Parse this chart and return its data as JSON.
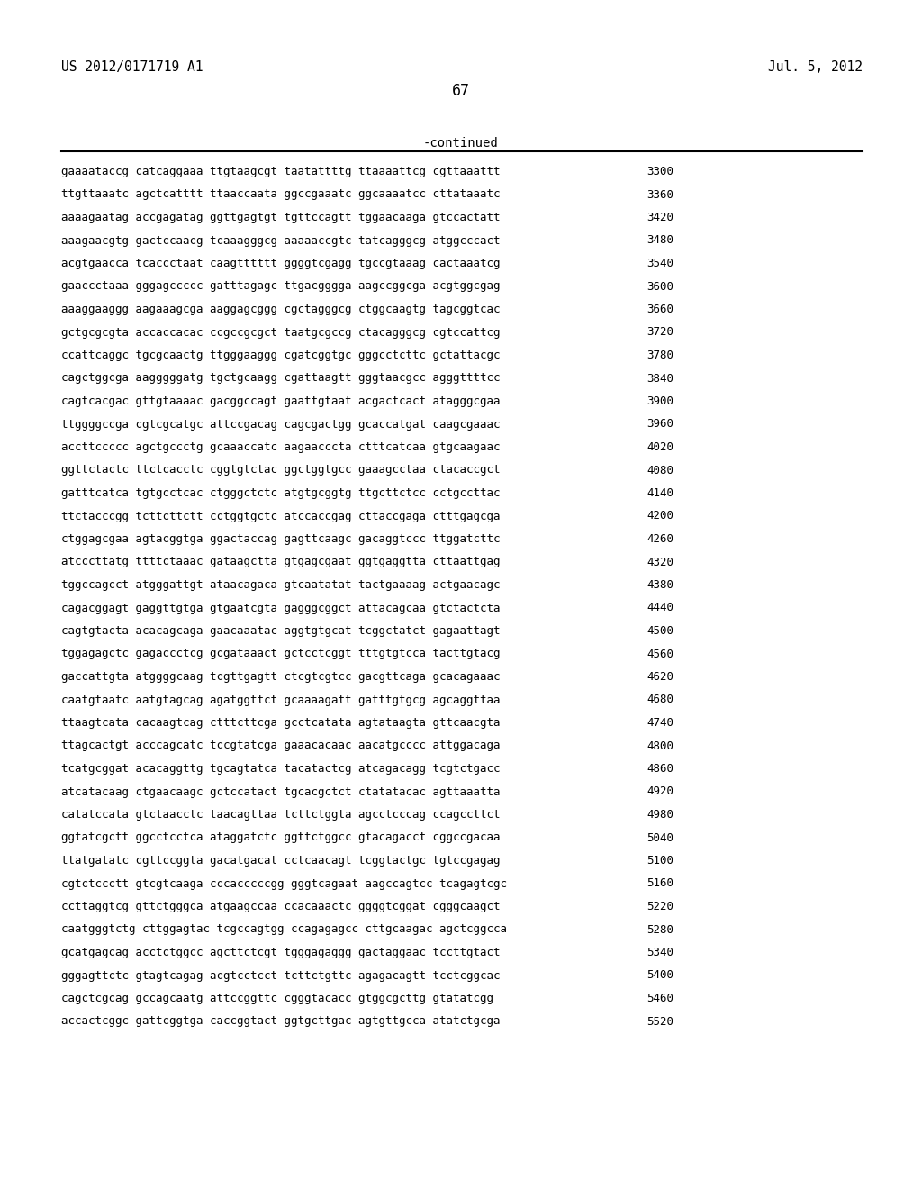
{
  "header_left": "US 2012/0171719 A1",
  "header_right": "Jul. 5, 2012",
  "page_number": "67",
  "continued_label": "-continued",
  "background_color": "#ffffff",
  "text_color": "#000000",
  "font_size": 9.0,
  "header_font_size": 10.5,
  "page_num_font_size": 12,
  "continued_font_size": 10,
  "sequences": [
    [
      "gaaaataccg catcaggaaa ttgtaagcgt taatattttg ttaaaattcg cgttaaattt",
      "3300"
    ],
    [
      "ttgttaaatc agctcatttt ttaaccaata ggccgaaatc ggcaaaatcc cttataaatc",
      "3360"
    ],
    [
      "aaaagaatag accgagatag ggttgagtgt tgttccagtt tggaacaaga gtccactatt",
      "3420"
    ],
    [
      "aaagaacgtg gactccaacg tcaaagggcg aaaaaccgtc tatcagggcg atggcccact",
      "3480"
    ],
    [
      "acgtgaacca tcaccctaat caagtttttt ggggtcgagg tgccgtaaag cactaaatcg",
      "3540"
    ],
    [
      "gaaccctaaa gggagccccc gatttagagc ttgacgggga aagccggcga acgtggcgag",
      "3600"
    ],
    [
      "aaaggaaggg aagaaagcga aaggagcggg cgctagggcg ctggcaagtg tagcggtcac",
      "3660"
    ],
    [
      "gctgcgcgta accaccacac ccgccgcgct taatgcgccg ctacagggcg cgtccattcg",
      "3720"
    ],
    [
      "ccattcaggc tgcgcaactg ttgggaaggg cgatcggtgc gggcctcttc gctattacgc",
      "3780"
    ],
    [
      "cagctggcga aagggggatg tgctgcaagg cgattaagtt gggtaacgcc agggttttcc",
      "3840"
    ],
    [
      "cagtcacgac gttgtaaaac gacggccagt gaattgtaat acgactcact atagggcgaa",
      "3900"
    ],
    [
      "ttggggccga cgtcgcatgc attccgacag cagcgactgg gcaccatgat caagcgaaac",
      "3960"
    ],
    [
      "accttccccc agctgccctg gcaaaccatc aagaacccta ctttcatcaa gtgcaagaac",
      "4020"
    ],
    [
      "ggttctactc ttctcacctc cggtgtctac ggctggtgcc gaaagcctaa ctacaccgct",
      "4080"
    ],
    [
      "gatttcatca tgtgcctcac ctgggctctc atgtgcggtg ttgcttctcc cctgccttac",
      "4140"
    ],
    [
      "ttctacccgg tcttcttctt cctggtgctc atccaccgag cttaccgaga ctttgagcga",
      "4200"
    ],
    [
      "ctggagcgaa agtacggtga ggactaccag gagttcaagc gacaggtccc ttggatcttc",
      "4260"
    ],
    [
      "atcccttatg ttttctaaac gataagctta gtgagcgaat ggtgaggtta cttaattgag",
      "4320"
    ],
    [
      "tggccagcct atgggattgt ataacagaca gtcaatatat tactgaaaag actgaacagc",
      "4380"
    ],
    [
      "cagacggagt gaggttgtga gtgaatcgta gagggcggct attacagcaa gtctactcta",
      "4440"
    ],
    [
      "cagtgtacta acacagcaga gaacaaatac aggtgtgcat tcggctatct gagaattagt",
      "4500"
    ],
    [
      "tggagagctc gagaccctcg gcgataaact gctcctcggt tttgtgtcca tacttgtacg",
      "4560"
    ],
    [
      "gaccattgta atggggcaag tcgttgagtt ctcgtcgtcc gacgttcaga gcacagaaac",
      "4620"
    ],
    [
      "caatgtaatc aatgtagcag agatggttct gcaaaagatt gatttgtgcg agcaggttaa",
      "4680"
    ],
    [
      "ttaagtcata cacaagtcag ctttcttcga gcctcatata agtataagta gttcaacgta",
      "4740"
    ],
    [
      "ttagcactgt acccagcatc tccgtatcga gaaacacaac aacatgcccc attggacaga",
      "4800"
    ],
    [
      "tcatgcggat acacaggttg tgcagtatca tacatactcg atcagacagg tcgtctgacc",
      "4860"
    ],
    [
      "atcatacaag ctgaacaagc gctccatact tgcacgctct ctatatacac agttaaatta",
      "4920"
    ],
    [
      "catatccata gtctaacctc taacagttaa tcttctggta agcctcccag ccagccttct",
      "4980"
    ],
    [
      "ggtatcgctt ggcctcctca ataggatctc ggttctggcc gtacagacct cggccgacaa",
      "5040"
    ],
    [
      "ttatgatatc cgttccggta gacatgacat cctcaacagt tcggtactgc tgtccgagag",
      "5100"
    ],
    [
      "cgtctccctt gtcgtcaaga cccacccccgg gggtcagaat aagccagtcc tcagagtcgc",
      "5160"
    ],
    [
      "ccttaggtcg gttctgggca atgaagccaa ccacaaactc ggggtcggat cgggcaagct",
      "5220"
    ],
    [
      "caatgggtctg cttggagtac tcgccagtgg ccagagagcc cttgcaagac agctcggcca",
      "5280"
    ],
    [
      "gcatgagcag acctctggcc agcttctcgt tgggagaggg gactaggaac tccttgtact",
      "5340"
    ],
    [
      "gggagttctc gtagtcagag acgtcctcct tcttctgttc agagacagtt tcctcggcac",
      "5400"
    ],
    [
      "cagctcgcag gccagcaatg attccggttc cgggtacacc gtggcgcttg gtatatcgg",
      "5460"
    ],
    [
      "accactcggc gattcggtga caccggtact ggtgcttgac agtgttgcca atatctgcga",
      "5520"
    ]
  ]
}
